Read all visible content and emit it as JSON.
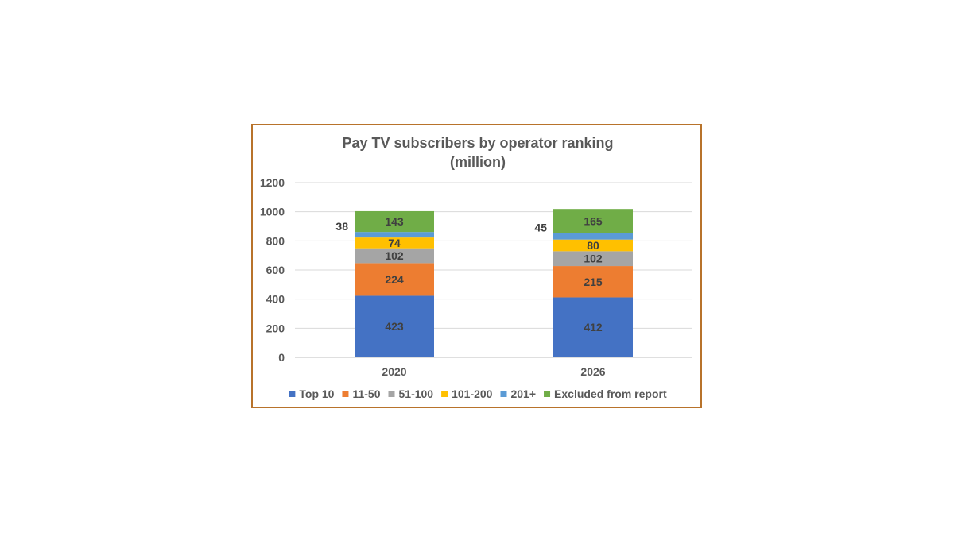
{
  "chart_data": {
    "type": "bar",
    "stacked": true,
    "title": "Pay TV subscribers by operator ranking",
    "subtitle": "(million)",
    "categories": [
      "2020",
      "2026"
    ],
    "series": [
      {
        "name": "Top 10",
        "values": [
          423,
          412
        ],
        "color": "#4472c4"
      },
      {
        "name": "11-50",
        "values": [
          224,
          215
        ],
        "color": "#ed7d31"
      },
      {
        "name": "51-100",
        "values": [
          102,
          102
        ],
        "color": "#a5a5a5"
      },
      {
        "name": "101-200",
        "values": [
          74,
          80
        ],
        "color": "#ffc000"
      },
      {
        "name": "201+",
        "values": [
          38,
          45
        ],
        "color": "#5b9bd5"
      },
      {
        "name": "Excluded from report",
        "values": [
          143,
          165
        ],
        "color": "#70ad47"
      }
    ],
    "ylim": [
      0,
      1200
    ],
    "yticks": [
      0,
      200,
      400,
      600,
      800,
      1000,
      1200
    ],
    "grid": true,
    "legend_position": "bottom",
    "frame_color": "#b8732b"
  }
}
